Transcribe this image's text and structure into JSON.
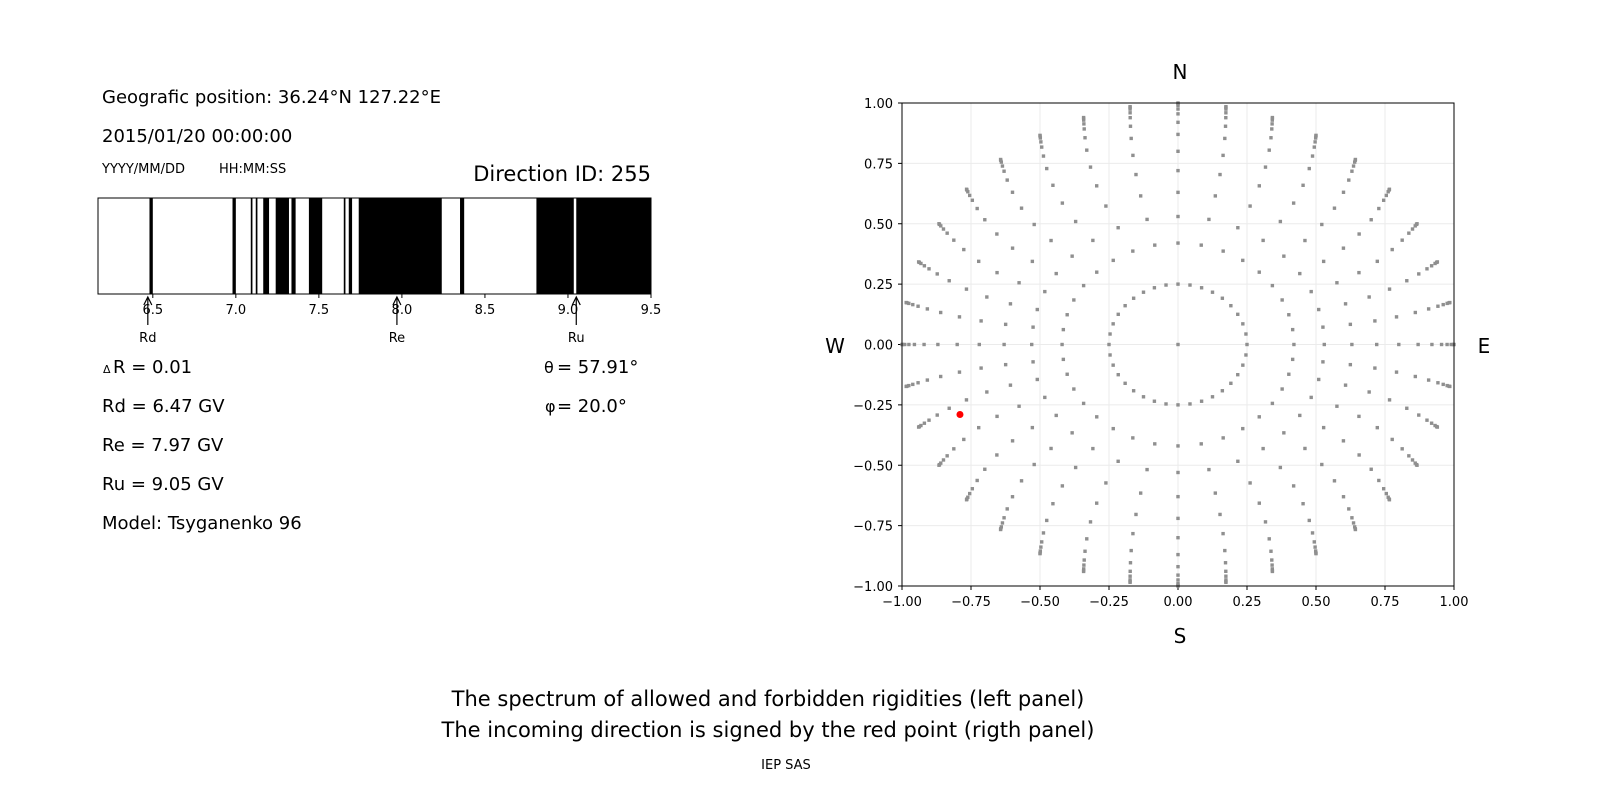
{
  "info": {
    "geo_position": "Geografic position: 36.24°N 127.22°E",
    "datetime": "2015/01/20 00:00:00",
    "date_format": "YYYY/MM/DD",
    "time_format": "HH:MM:SS",
    "direction_id": "Direction ID: 255",
    "delta_r_symbol": "Δ",
    "delta_r": "R = 0.01",
    "rd": "Rd = 6.47 GV",
    "re": "Re = 7.97 GV",
    "ru": "Ru = 9.05 GV",
    "model": "Model: Tsyganenko 96",
    "theta_symbol": "θ",
    "theta": " = 57.91°",
    "phi_symbol": "φ",
    "phi": " = 20.0°"
  },
  "caption": {
    "line1": "The spectrum of allowed and forbidden rigidities (left panel)",
    "line2": "The incoming direction is signed by the red point (rigth panel)",
    "credit": "IEP SAS"
  },
  "chart_data": [
    {
      "type": "spectrum",
      "xlim": [
        6.17,
        9.5
      ],
      "xticks": [
        "6.5",
        "7.0",
        "7.5",
        "8.0",
        "8.5",
        "9.0",
        "9.5"
      ],
      "xtick_values": [
        6.5,
        7.0,
        7.5,
        8.0,
        8.5,
        9.0,
        9.5
      ],
      "allowed_color": "#ffffff",
      "forbidden_color": "#000000",
      "forbidden_bands": [
        [
          6.48,
          6.5
        ],
        [
          6.98,
          7.0
        ],
        [
          7.09,
          7.1
        ],
        [
          7.12,
          7.13
        ],
        [
          7.165,
          7.2
        ],
        [
          7.24,
          7.32
        ],
        [
          7.335,
          7.36
        ],
        [
          7.44,
          7.52
        ],
        [
          7.65,
          7.66
        ],
        [
          7.68,
          7.7
        ],
        [
          7.74,
          8.24
        ],
        [
          8.35,
          8.375
        ],
        [
          8.81,
          9.035
        ],
        [
          9.05,
          9.5
        ]
      ],
      "markers": [
        {
          "label": "Rd",
          "value": 6.47
        },
        {
          "label": "Re",
          "value": 7.97
        },
        {
          "label": "Ru",
          "value": 9.05
        }
      ]
    },
    {
      "type": "scatter",
      "xlim": [
        -1.0,
        1.0
      ],
      "ylim": [
        -1.0,
        1.0
      ],
      "xticks": [
        "−1.00",
        "−0.75",
        "−0.50",
        "−0.25",
        "0.00",
        "0.25",
        "0.50",
        "0.75",
        "1.00"
      ],
      "yticks": [
        "−1.00",
        "−0.75",
        "−0.50",
        "−0.25",
        "0.00",
        "0.25",
        "0.50",
        "0.75",
        "1.00"
      ],
      "tick_values": [
        -1.0,
        -0.75,
        -0.5,
        -0.25,
        0.0,
        0.25,
        0.5,
        0.75,
        1.0
      ],
      "grid": true,
      "compass": {
        "north": "N",
        "south": "S",
        "east": "E",
        "west": "W"
      },
      "grid_points": {
        "color": "#8f8f8f",
        "azimuth_step_deg": 10,
        "ring_radii": [
          0.25,
          0.42,
          0.53,
          0.63,
          0.72,
          0.8,
          0.87,
          0.92,
          0.955,
          0.975,
          0.99,
          0.997,
          1.0
        ],
        "center": [
          0.0,
          0.0
        ]
      },
      "selected_point": {
        "x": -0.79,
        "y": -0.29,
        "color": "#ff0000"
      }
    }
  ]
}
